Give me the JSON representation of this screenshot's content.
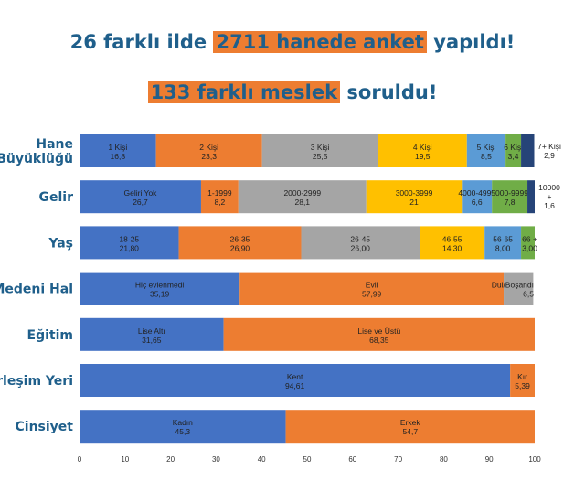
{
  "headline": {
    "line1": {
      "before": "26 farklı ilde ",
      "highlight": "2711 hanede anket",
      "after": " yapıldı!"
    },
    "line2": {
      "before": "",
      "highlight": "133 farklı meslek",
      "after": " soruldu!"
    }
  },
  "colors": {
    "headline_text": "#1f5f8b",
    "highlight": "#ed7d31",
    "category_label": "#1f5f8b",
    "palette": [
      "#4472c4",
      "#ed7d31",
      "#a5a5a5",
      "#ffc000",
      "#5b9bd5",
      "#70ad47",
      "#264478"
    ]
  },
  "chart_data": {
    "type": "bar",
    "orientation": "horizontal",
    "stacked": true,
    "xlim": [
      0,
      100
    ],
    "xticks": [
      0,
      10,
      20,
      30,
      40,
      50,
      60,
      70,
      80,
      90,
      100
    ],
    "grid": false,
    "rows": [
      {
        "category": "Hane Büyüklüğü",
        "category_lines": [
          "Hane",
          "Büyüklüğü"
        ],
        "segments": [
          {
            "label": "1 Kişi",
            "value_text": "16,8",
            "value": 16.8,
            "color": "#4472c4"
          },
          {
            "label": "2 Kişi",
            "value_text": "23,3",
            "value": 23.3,
            "color": "#ed7d31"
          },
          {
            "label": "3 Kişi",
            "value_text": "25,5",
            "value": 25.5,
            "color": "#a5a5a5"
          },
          {
            "label": "4 Kişi",
            "value_text": "19,5",
            "value": 19.5,
            "color": "#ffc000"
          },
          {
            "label": "5 Kişi",
            "value_text": "8,5",
            "value": 8.5,
            "color": "#5b9bd5"
          },
          {
            "label": "6 Kişi",
            "value_text": "3,4",
            "value": 3.4,
            "color": "#70ad47"
          },
          {
            "label": "7+ Kişi",
            "value_text": "2,9",
            "value": 2.9,
            "color": "#264478",
            "outside": true
          }
        ]
      },
      {
        "category": "Gelir",
        "category_lines": [
          "Gelir"
        ],
        "segments": [
          {
            "label": "Geliri Yok",
            "value_text": "26,7",
            "value": 26.7,
            "color": "#4472c4"
          },
          {
            "label": "1-1999",
            "value_text": "8,2",
            "value": 8.2,
            "color": "#ed7d31"
          },
          {
            "label": "2000-2999",
            "value_text": "28,1",
            "value": 28.1,
            "color": "#a5a5a5"
          },
          {
            "label": "3000-3999",
            "value_text": "21",
            "value": 21,
            "color": "#ffc000"
          },
          {
            "label": "4000-4999",
            "value_text": "6,6",
            "value": 6.6,
            "color": "#5b9bd5"
          },
          {
            "label": "5000-9999",
            "value_text": "7,8",
            "value": 7.8,
            "color": "#70ad47"
          },
          {
            "label": "10000 +",
            "label_lines": [
              "10000",
              "+"
            ],
            "value_text": "1,6",
            "value": 1.6,
            "color": "#264478",
            "outside": true
          }
        ]
      },
      {
        "category": "Yaş",
        "category_lines": [
          "Yaş"
        ],
        "segments": [
          {
            "label": "18-25",
            "value_text": "21,80",
            "value": 21.8,
            "color": "#4472c4"
          },
          {
            "label": "26-35",
            "value_text": "26,90",
            "value": 26.9,
            "color": "#ed7d31"
          },
          {
            "label": "26-45",
            "value_text": "26,00",
            "value": 26.0,
            "color": "#a5a5a5"
          },
          {
            "label": "46-55",
            "value_text": "14,30",
            "value": 14.3,
            "color": "#ffc000"
          },
          {
            "label": "56-65",
            "value_text": "8,00",
            "value": 8.0,
            "color": "#5b9bd5"
          },
          {
            "label": "66 +",
            "value_text": "3,00",
            "value": 3.0,
            "color": "#70ad47"
          }
        ]
      },
      {
        "category": "Medeni Hal",
        "category_lines": [
          "Medeni Hal"
        ],
        "segments": [
          {
            "label": "Hiç evlenmedi",
            "value_text": "35,19",
            "value": 35.19,
            "color": "#4472c4"
          },
          {
            "label": "Evli",
            "value_text": "57,99",
            "value": 57.99,
            "color": "#ed7d31"
          },
          {
            "label": "Dul/Boşandı",
            "value_text": "6,5",
            "value": 6.5,
            "color": "#a5a5a5"
          }
        ]
      },
      {
        "category": "Eğitim",
        "category_lines": [
          "Eğitim"
        ],
        "segments": [
          {
            "label": "Lise Altı",
            "value_text": "31,65",
            "value": 31.65,
            "color": "#4472c4"
          },
          {
            "label": "Lise ve Üstü",
            "value_text": "68,35",
            "value": 68.35,
            "color": "#ed7d31"
          }
        ]
      },
      {
        "category": "Yerleşim Yeri",
        "category_lines": [
          "Yerleşim Yeri"
        ],
        "segments": [
          {
            "label": "Kent",
            "value_text": "94,61",
            "value": 94.61,
            "color": "#4472c4"
          },
          {
            "label": "Kır",
            "value_text": "5,39",
            "value": 5.39,
            "color": "#ed7d31"
          }
        ]
      },
      {
        "category": "Cinsiyet",
        "category_lines": [
          "Cinsiyet"
        ],
        "segments": [
          {
            "label": "Kadın",
            "value_text": "45,3",
            "value": 45.3,
            "color": "#4472c4"
          },
          {
            "label": "Erkek",
            "value_text": "54,7",
            "value": 54.7,
            "color": "#ed7d31"
          }
        ]
      }
    ]
  }
}
